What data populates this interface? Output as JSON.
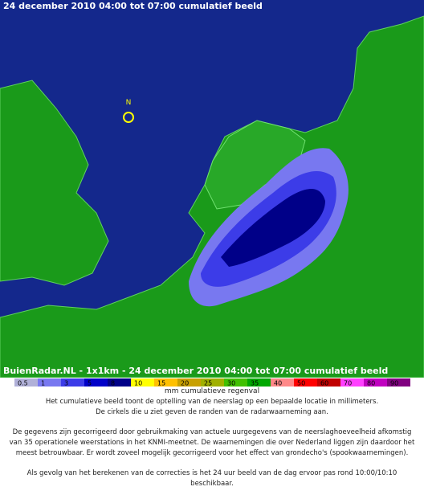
{
  "header": {
    "title": "24 december 2010 04:00 tot 07:00 cumulatief beeld"
  },
  "map": {
    "caption": "BuienRadar.NL - 1x1km - 24 december 2010 04:00 tot 07:00 cumulatief beeld",
    "compass": "N"
  },
  "legend": {
    "title": "mm cumulatieve regenval",
    "items": [
      {
        "label": "0.5",
        "color": "#b0b0d8"
      },
      {
        "label": "1",
        "color": "#7878f0"
      },
      {
        "label": "3",
        "color": "#3c3ce8"
      },
      {
        "label": "5",
        "color": "#0000c8"
      },
      {
        "label": "8",
        "color": "#000088"
      },
      {
        "label": "10",
        "color": "#ffff00"
      },
      {
        "label": "15",
        "color": "#ffc000"
      },
      {
        "label": "20",
        "color": "#c8a000"
      },
      {
        "label": "25",
        "color": "#a0b000"
      },
      {
        "label": "30",
        "color": "#40c000"
      },
      {
        "label": "35",
        "color": "#00a800"
      },
      {
        "label": "40",
        "color": "#ff8888"
      },
      {
        "label": "50",
        "color": "#ff0000"
      },
      {
        "label": "60",
        "color": "#c00000"
      },
      {
        "label": "70",
        "color": "#ff40ff"
      },
      {
        "label": "80",
        "color": "#c000c0"
      },
      {
        "label": "90",
        "color": "#800080"
      }
    ]
  },
  "text": {
    "paragraphs": [
      "Het cumulatieve beeld toont de optelling van de neerslag op een bepaalde locatie in millimeters.",
      "De cirkels die u ziet geven de randen van de radarwaarneming aan.",
      "De gegevens zijn gecorrigeerd door gebruikmaking van actuele uurgegevens van de neerslaghoeveelheid afkomstig van 35 operationele weerstations in het KNMI-meetnet. De waarnemingen die over Nederland liggen zijn daardoor het meest betrouwbaar. Er wordt zoveel mogelijk gecorrigeerd voor het effect van grondecho's (spookwaarnemingen).",
      "Als gevolg van het berekenen van de correcties is het 24 uur beeld van de dag ervoor pas rond 10:00/10:10 beschikbaar."
    ]
  }
}
